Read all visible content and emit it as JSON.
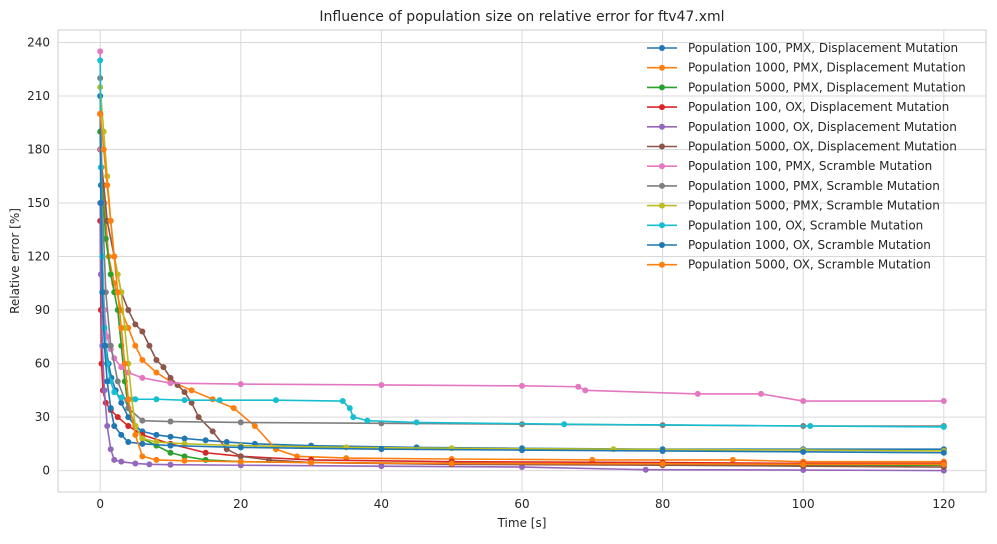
{
  "chart_data": {
    "type": "line",
    "title": "Influence of population size on relative error for ftv47.xml",
    "xlabel": "Time [s]",
    "ylabel": "Relative error [%]",
    "xlim": [
      -6,
      126
    ],
    "ylim": [
      -12,
      247
    ],
    "x_ticks": [
      0,
      20,
      40,
      60,
      80,
      100,
      120
    ],
    "y_ticks": [
      0,
      30,
      60,
      90,
      120,
      150,
      180,
      210,
      240
    ],
    "grid": true,
    "legend_position": "top-right",
    "series": [
      {
        "name": "Population 100, PMX, Displacement Mutation",
        "color": "#1f77b4",
        "x": [
          0,
          0.1,
          0.3,
          0.5,
          0.8,
          1.2,
          1.6,
          2.2,
          3,
          4,
          5,
          6,
          8,
          10,
          12,
          15,
          18,
          22,
          30,
          45,
          60,
          80,
          100,
          120
        ],
        "y": [
          210,
          160,
          120,
          90,
          70,
          60,
          52,
          45,
          38,
          30,
          25,
          22,
          20,
          19,
          18,
          17,
          16,
          15,
          14,
          13,
          12.5,
          12,
          12,
          12
        ]
      },
      {
        "name": "Population 1000, PMX, Displacement Mutation",
        "color": "#ff7f0e",
        "x": [
          0,
          0.2,
          0.6,
          1.2,
          2,
          3,
          4,
          5,
          6,
          8,
          10,
          13,
          16,
          19,
          22,
          25,
          28,
          35,
          50,
          70,
          90,
          100,
          120
        ],
        "y": [
          200,
          170,
          150,
          120,
          105,
          90,
          80,
          70,
          62,
          55,
          50,
          45,
          40,
          35,
          25,
          12,
          8,
          7,
          6.5,
          6,
          6,
          5,
          5
        ]
      },
      {
        "name": "Population 5000, PMX, Displacement Mutation",
        "color": "#2ca02c",
        "x": [
          0,
          0.3,
          0.8,
          1.5,
          2,
          2.5,
          3,
          3.5,
          4,
          5,
          6,
          8,
          10,
          12,
          15,
          20,
          30,
          50,
          80,
          100,
          120
        ],
        "y": [
          190,
          160,
          130,
          110,
          100,
          90,
          70,
          50,
          35,
          25,
          18,
          14,
          10,
          8,
          6,
          5,
          4.5,
          4,
          3.5,
          3,
          3
        ]
      },
      {
        "name": "Population 100, OX, Displacement Mutation",
        "color": "#d62728",
        "x": [
          0,
          0.1,
          0.2,
          0.4,
          0.8,
          1.5,
          2.5,
          4,
          6,
          10,
          15,
          20,
          30,
          50,
          80,
          100,
          120
        ],
        "y": [
          140,
          90,
          60,
          45,
          38,
          34,
          30,
          25,
          20,
          15,
          10,
          8,
          6,
          5,
          4.5,
          4,
          4
        ]
      },
      {
        "name": "Population 1000, OX, Displacement Mutation",
        "color": "#9467bd",
        "x": [
          0,
          0.1,
          0.3,
          0.6,
          1,
          1.5,
          2,
          3,
          5,
          7,
          10,
          20,
          40,
          60,
          77.6,
          100,
          120
        ],
        "y": [
          150,
          110,
          70,
          45,
          25,
          12,
          6,
          5,
          4,
          3.5,
          3.3,
          3,
          2.5,
          2,
          0.5,
          0.3,
          0
        ]
      },
      {
        "name": "Population 5000, OX, Displacement Mutation",
        "color": "#8c564b",
        "x": [
          0,
          0.5,
          1,
          2,
          3,
          4,
          5,
          6,
          7,
          8,
          9,
          10,
          11,
          12,
          13,
          14,
          16,
          18,
          20,
          24,
          30,
          50,
          80,
          100,
          120
        ],
        "y": [
          180,
          160,
          140,
          120,
          100,
          90,
          82,
          78,
          70,
          62,
          58,
          52,
          48,
          44,
          38,
          30,
          22,
          12,
          8,
          6,
          4.5,
          3.5,
          3,
          2.5,
          2
        ]
      },
      {
        "name": "Population 100, PMX, Scramble Mutation",
        "color": "#e377c2",
        "x": [
          0,
          0.1,
          0.3,
          0.6,
          1,
          1.5,
          2,
          3,
          4,
          6,
          10,
          20,
          40,
          60,
          68,
          69,
          85,
          94,
          100,
          120
        ],
        "y": [
          235,
          180,
          120,
          90,
          75,
          68,
          63,
          58,
          55,
          52,
          49,
          48.5,
          48,
          47.5,
          47,
          45,
          43,
          43,
          39,
          39
        ]
      },
      {
        "name": "Population 1000, PMX, Scramble Mutation",
        "color": "#7f7f7f",
        "x": [
          0,
          0.3,
          0.8,
          1.5,
          2.5,
          4,
          6,
          10,
          20,
          40,
          60,
          80,
          100,
          120
        ],
        "y": [
          220,
          150,
          100,
          70,
          50,
          35,
          28,
          27.5,
          27,
          26.5,
          26,
          25.5,
          25,
          25
        ]
      },
      {
        "name": "Population 5000, PMX, Scramble Mutation",
        "color": "#bcbd22",
        "x": [
          0,
          0.5,
          1,
          1.5,
          2,
          2.5,
          3,
          3.5,
          4,
          4.5,
          5,
          6,
          8,
          12,
          20,
          35,
          50,
          73,
          100,
          120
        ],
        "y": [
          215,
          190,
          165,
          140,
          120,
          110,
          100,
          80,
          60,
          40,
          25,
          18,
          16,
          15,
          14,
          13,
          12.5,
          12,
          11.5,
          11
        ]
      },
      {
        "name": "Population 100, OX, Scramble Mutation",
        "color": "#17becf",
        "x": [
          0,
          0.1,
          0.3,
          0.6,
          1,
          1.5,
          2,
          3,
          5,
          8,
          12,
          17,
          25,
          34.5,
          35.5,
          36,
          38,
          45,
          66,
          101,
          120
        ],
        "y": [
          230,
          170,
          120,
          80,
          60,
          50,
          44,
          41,
          40,
          40,
          39.5,
          39.5,
          39.5,
          39,
          35,
          30,
          28,
          27,
          26,
          25,
          24.5
        ]
      },
      {
        "name": "Population 1000, OX, Scramble Mutation",
        "color": "#1f77b4",
        "x": [
          0,
          0.1,
          0.3,
          0.6,
          1,
          1.5,
          2,
          3,
          4,
          6,
          10,
          20,
          40,
          60,
          80,
          100,
          120
        ],
        "y": [
          200,
          150,
          100,
          70,
          50,
          35,
          25,
          20,
          16,
          15,
          14,
          13,
          12,
          11.5,
          11,
          10.5,
          10
        ]
      },
      {
        "name": "Population 5000, OX, Scramble Mutation",
        "color": "#ff7f0e",
        "x": [
          0,
          0.5,
          1,
          1.5,
          2,
          2.5,
          3,
          3.5,
          4,
          5,
          6,
          8,
          12,
          20,
          30,
          50,
          80,
          100,
          120
        ],
        "y": [
          200,
          180,
          160,
          140,
          120,
          100,
          80,
          60,
          40,
          20,
          8,
          6,
          5.5,
          5,
          4.5,
          4,
          3.8,
          3.5,
          3.5
        ]
      }
    ]
  }
}
